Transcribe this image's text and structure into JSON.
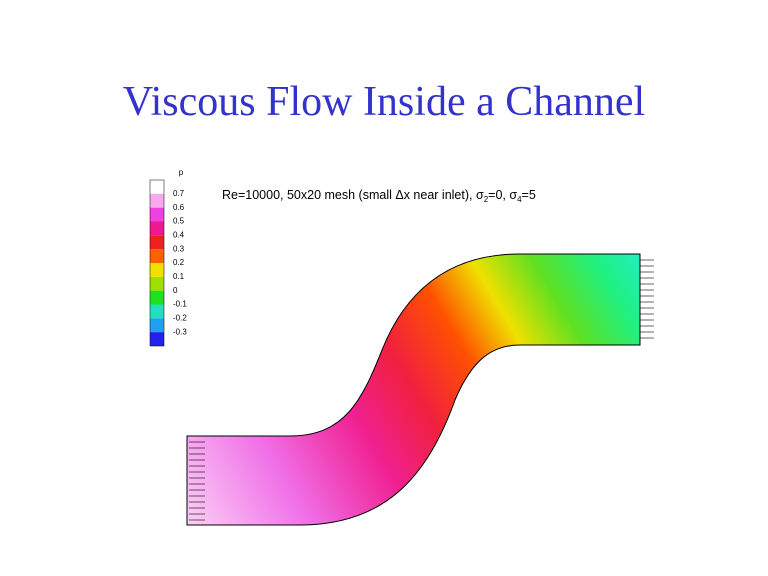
{
  "title": "Viscous Flow Inside a Channel",
  "figure": {
    "caption": [
      "Re=10000, 50x20 mesh (small Δx near inlet), σ",
      "2",
      "=0, σ",
      "4",
      "=5"
    ],
    "colorbar": {
      "label": "p",
      "labels": [
        "0.7",
        "0.6",
        "0.5",
        "0.4",
        "0.3",
        "0.2",
        "0.1",
        "0",
        "-0.1",
        "-0.2",
        "-0.3"
      ],
      "colors": [
        "#ffffff",
        "#f8a8f0",
        "#f040e0",
        "#f01890",
        "#f02020",
        "#ff6000",
        "#f0e000",
        "#a0e000",
        "#20e020",
        "#20e0c0",
        "#20a0f0",
        "#2020f0"
      ]
    }
  }
}
